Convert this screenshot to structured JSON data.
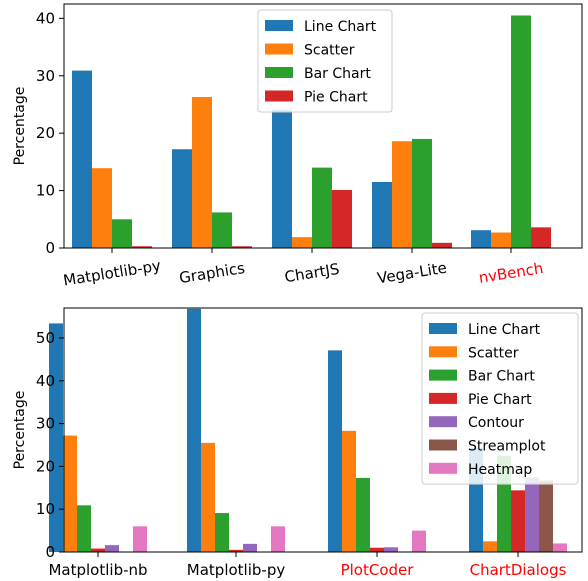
{
  "chart_data": [
    {
      "type": "bar",
      "categories": [
        "Matplotlib-py",
        "Graphics",
        "ChartJS",
        "Vega-Lite",
        "nvBench"
      ],
      "category_colors": [
        "#000000",
        "#000000",
        "#000000",
        "#000000",
        "#ff0000"
      ],
      "series": [
        {
          "name": "Line Chart",
          "color": "#1f77b4",
          "values": [
            30.9,
            17.2,
            24.1,
            11.5,
            3.1
          ]
        },
        {
          "name": "Scatter",
          "color": "#ff7f0e",
          "values": [
            13.9,
            26.3,
            1.9,
            18.6,
            2.7
          ]
        },
        {
          "name": "Bar Chart",
          "color": "#2ca02c",
          "values": [
            5.0,
            6.2,
            14.0,
            19.0,
            40.5
          ]
        },
        {
          "name": "Pie Chart",
          "color": "#d62728",
          "values": [
            0.3,
            0.3,
            10.1,
            0.9,
            3.6
          ]
        }
      ],
      "ylabel": "Percentage",
      "ylim": [
        0,
        42.5
      ],
      "yticks": [
        0,
        10,
        20,
        30,
        40
      ],
      "legend_position": "upper-center",
      "grid": false
    },
    {
      "type": "bar",
      "categories": [
        "Matplotlib-nb",
        "Matplotlib-py",
        "PlotCoder",
        "ChartDialogs"
      ],
      "category_colors": [
        "#000000",
        "#000000",
        "#ff0000",
        "#ff0000"
      ],
      "series": [
        {
          "name": "Line Chart",
          "color": "#1f77b4",
          "values": [
            53.4,
            56.8,
            47.1,
            24.3
          ]
        },
        {
          "name": "Scatter",
          "color": "#ff7f0e",
          "values": [
            27.2,
            25.5,
            28.3,
            2.5
          ]
        },
        {
          "name": "Bar Chart",
          "color": "#2ca02c",
          "values": [
            10.9,
            9.1,
            17.3,
            22.5
          ]
        },
        {
          "name": "Pie Chart",
          "color": "#d62728",
          "values": [
            0.8,
            0.5,
            1.0,
            14.4
          ]
        },
        {
          "name": "Contour",
          "color": "#9467bd",
          "values": [
            1.6,
            1.9,
            1.1,
            17.4
          ]
        },
        {
          "name": "Streamplot",
          "color": "#8c564b",
          "values": [
            0.0,
            0.0,
            0.0,
            16.7
          ]
        },
        {
          "name": "Heatmap",
          "color": "#e377c2",
          "values": [
            6.0,
            6.0,
            5.0,
            2.0
          ]
        }
      ],
      "ylabel": "Percentage",
      "ylim": [
        0,
        57
      ],
      "yticks": [
        0,
        10,
        20,
        30,
        40,
        50
      ],
      "legend_position": "upper-right",
      "grid": false
    }
  ]
}
